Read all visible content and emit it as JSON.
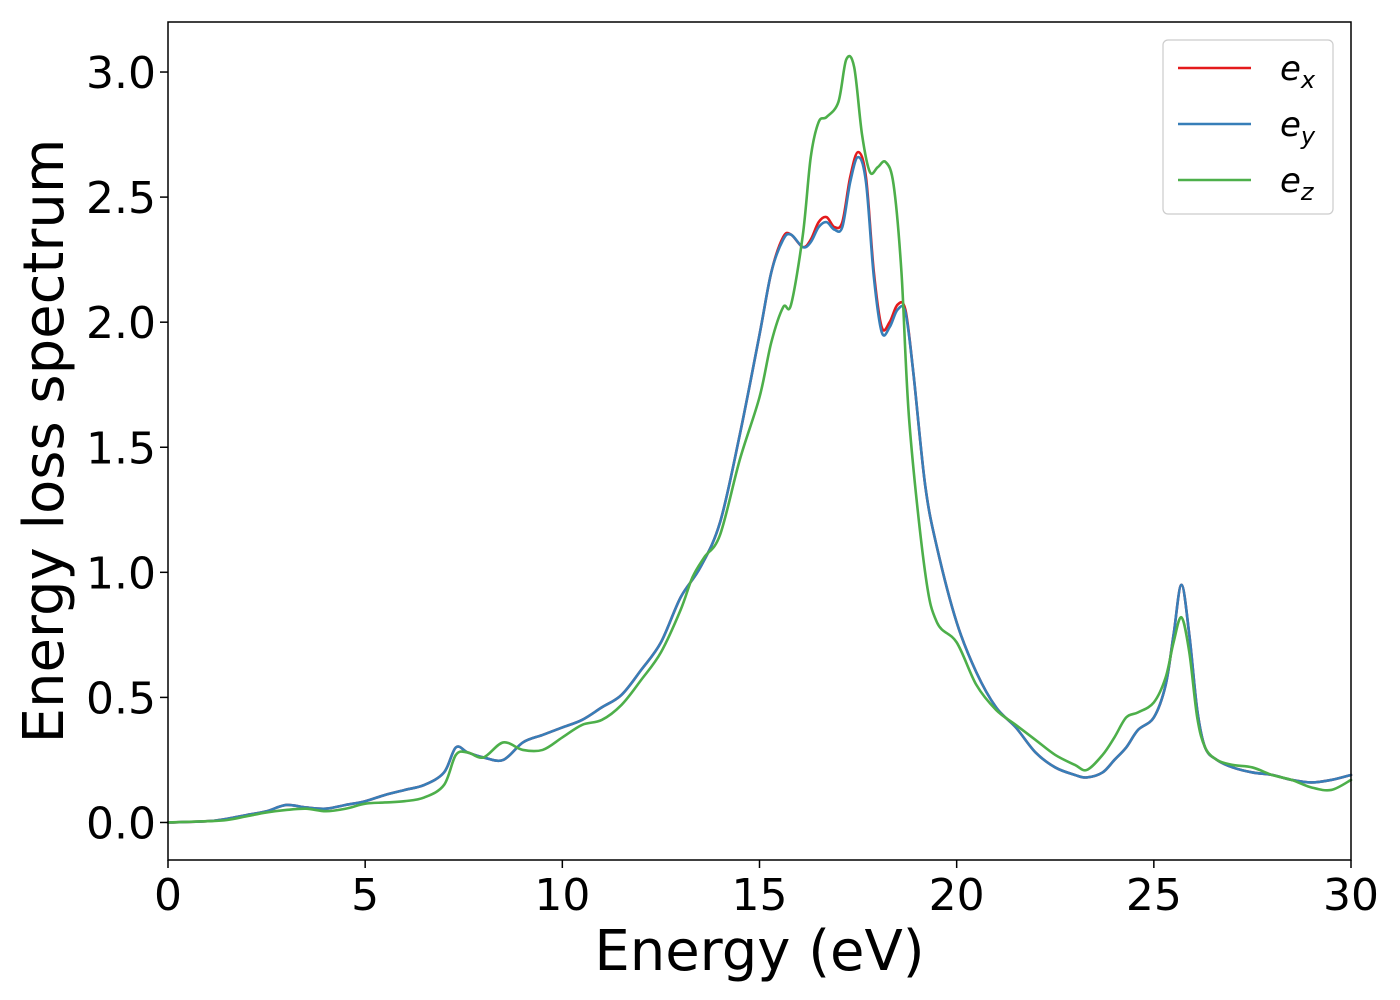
{
  "chart_data": {
    "type": "line",
    "title": "",
    "xlabel": "Energy (eV)",
    "ylabel": "Energy loss spectrum",
    "xlim": [
      0,
      30
    ],
    "ylim": [
      -0.15,
      3.2
    ],
    "xticks": [
      0,
      5,
      10,
      15,
      20,
      25,
      30
    ],
    "xtick_labels": [
      "0",
      "5",
      "10",
      "15",
      "20",
      "25",
      "30"
    ],
    "yticks": [
      0.0,
      0.5,
      1.0,
      1.5,
      2.0,
      2.5,
      3.0
    ],
    "ytick_labels": [
      "0.0",
      "0.5",
      "1.0",
      "1.5",
      "2.0",
      "2.5",
      "3.0"
    ],
    "grid": false,
    "legend_position": "top-right",
    "series": [
      {
        "name": "e_x",
        "legend_base": "e",
        "legend_sub": "x",
        "color": "#e41a1c",
        "x": [
          0,
          1,
          1.5,
          2,
          2.5,
          3,
          3.5,
          4,
          4.5,
          5,
          5.5,
          6,
          6.5,
          7,
          7.3,
          7.6,
          8,
          8.5,
          9,
          9.5,
          10,
          10.5,
          11,
          11.5,
          12,
          12.5,
          13,
          13.5,
          14,
          14.5,
          15,
          15.3,
          15.6,
          15.8,
          16.1,
          16.3,
          16.5,
          16.7,
          16.9,
          17.1,
          17.3,
          17.5,
          17.7,
          17.9,
          18.1,
          18.3,
          18.5,
          18.7,
          18.9,
          19.2,
          19.5,
          20,
          20.5,
          21,
          21.5,
          22,
          22.5,
          23,
          23.3,
          23.7,
          24,
          24.3,
          24.6,
          25,
          25.3,
          25.5,
          25.7,
          25.9,
          26.1,
          26.3,
          26.6,
          27,
          27.5,
          28,
          28.5,
          29,
          29.5,
          30
        ],
        "y": [
          0.0,
          0.005,
          0.015,
          0.03,
          0.045,
          0.07,
          0.06,
          0.055,
          0.07,
          0.085,
          0.11,
          0.13,
          0.15,
          0.2,
          0.3,
          0.28,
          0.26,
          0.25,
          0.32,
          0.35,
          0.38,
          0.41,
          0.46,
          0.51,
          0.61,
          0.72,
          0.9,
          1.02,
          1.2,
          1.55,
          1.95,
          2.2,
          2.34,
          2.35,
          2.3,
          2.33,
          2.4,
          2.42,
          2.38,
          2.4,
          2.58,
          2.68,
          2.58,
          2.2,
          1.98,
          2.0,
          2.07,
          2.05,
          1.8,
          1.35,
          1.1,
          0.8,
          0.6,
          0.46,
          0.38,
          0.28,
          0.22,
          0.19,
          0.18,
          0.2,
          0.25,
          0.3,
          0.37,
          0.42,
          0.55,
          0.75,
          0.95,
          0.75,
          0.45,
          0.3,
          0.25,
          0.22,
          0.2,
          0.19,
          0.17,
          0.16,
          0.17,
          0.19
        ]
      },
      {
        "name": "e_y",
        "legend_base": "e",
        "legend_sub": "y",
        "color": "#377eb8",
        "x": [
          0,
          1,
          1.5,
          2,
          2.5,
          3,
          3.5,
          4,
          4.5,
          5,
          5.5,
          6,
          6.5,
          7,
          7.3,
          7.6,
          8,
          8.5,
          9,
          9.5,
          10,
          10.5,
          11,
          11.5,
          12,
          12.5,
          13,
          13.5,
          14,
          14.5,
          15,
          15.3,
          15.6,
          15.8,
          16.1,
          16.3,
          16.5,
          16.7,
          16.9,
          17.1,
          17.3,
          17.5,
          17.7,
          17.9,
          18.1,
          18.3,
          18.5,
          18.7,
          18.9,
          19.2,
          19.5,
          20,
          20.5,
          21,
          21.5,
          22,
          22.5,
          23,
          23.3,
          23.7,
          24,
          24.3,
          24.6,
          25,
          25.3,
          25.5,
          25.7,
          25.9,
          26.1,
          26.3,
          26.6,
          27,
          27.5,
          28,
          28.5,
          29,
          29.5,
          30
        ],
        "y": [
          0.0,
          0.005,
          0.015,
          0.03,
          0.045,
          0.07,
          0.06,
          0.055,
          0.07,
          0.085,
          0.11,
          0.13,
          0.15,
          0.2,
          0.3,
          0.28,
          0.26,
          0.25,
          0.32,
          0.35,
          0.38,
          0.41,
          0.46,
          0.51,
          0.61,
          0.72,
          0.9,
          1.02,
          1.2,
          1.55,
          1.95,
          2.2,
          2.33,
          2.35,
          2.3,
          2.32,
          2.38,
          2.4,
          2.37,
          2.38,
          2.56,
          2.66,
          2.56,
          2.18,
          1.96,
          1.98,
          2.05,
          2.04,
          1.8,
          1.35,
          1.1,
          0.8,
          0.6,
          0.46,
          0.38,
          0.28,
          0.22,
          0.19,
          0.18,
          0.2,
          0.25,
          0.3,
          0.37,
          0.42,
          0.55,
          0.75,
          0.95,
          0.75,
          0.45,
          0.3,
          0.25,
          0.22,
          0.2,
          0.19,
          0.17,
          0.16,
          0.17,
          0.19
        ]
      },
      {
        "name": "e_z",
        "legend_base": "e",
        "legend_sub": "z",
        "color": "#4daf4a",
        "x": [
          0,
          1,
          1.5,
          2,
          2.5,
          3,
          3.5,
          4,
          4.5,
          5,
          5.5,
          6,
          6.5,
          7,
          7.3,
          7.6,
          8,
          8.5,
          9,
          9.5,
          10,
          10.5,
          11,
          11.5,
          12,
          12.5,
          13,
          13.3,
          13.6,
          14,
          14.5,
          15,
          15.3,
          15.6,
          15.8,
          16.1,
          16.3,
          16.5,
          16.7,
          17,
          17.2,
          17.4,
          17.6,
          17.8,
          18,
          18.2,
          18.4,
          18.6,
          18.8,
          19.2,
          19.5,
          20,
          20.5,
          21,
          21.5,
          22,
          22.5,
          23,
          23.3,
          23.7,
          24,
          24.3,
          24.6,
          25,
          25.3,
          25.5,
          25.7,
          25.9,
          26.1,
          26.3,
          26.6,
          27,
          27.5,
          28,
          28.5,
          29,
          29.5,
          30
        ],
        "y": [
          0.0,
          0.005,
          0.01,
          0.025,
          0.04,
          0.05,
          0.055,
          0.045,
          0.055,
          0.075,
          0.08,
          0.085,
          0.1,
          0.15,
          0.27,
          0.28,
          0.26,
          0.32,
          0.29,
          0.29,
          0.34,
          0.39,
          0.41,
          0.47,
          0.57,
          0.68,
          0.85,
          0.98,
          1.06,
          1.15,
          1.45,
          1.7,
          1.92,
          2.06,
          2.07,
          2.35,
          2.66,
          2.8,
          2.82,
          2.88,
          3.05,
          3.02,
          2.75,
          2.6,
          2.62,
          2.64,
          2.55,
          2.2,
          1.6,
          1.0,
          0.8,
          0.72,
          0.55,
          0.45,
          0.39,
          0.33,
          0.27,
          0.23,
          0.21,
          0.27,
          0.34,
          0.42,
          0.44,
          0.48,
          0.58,
          0.72,
          0.82,
          0.68,
          0.42,
          0.3,
          0.25,
          0.23,
          0.22,
          0.19,
          0.17,
          0.14,
          0.13,
          0.17
        ]
      }
    ]
  }
}
